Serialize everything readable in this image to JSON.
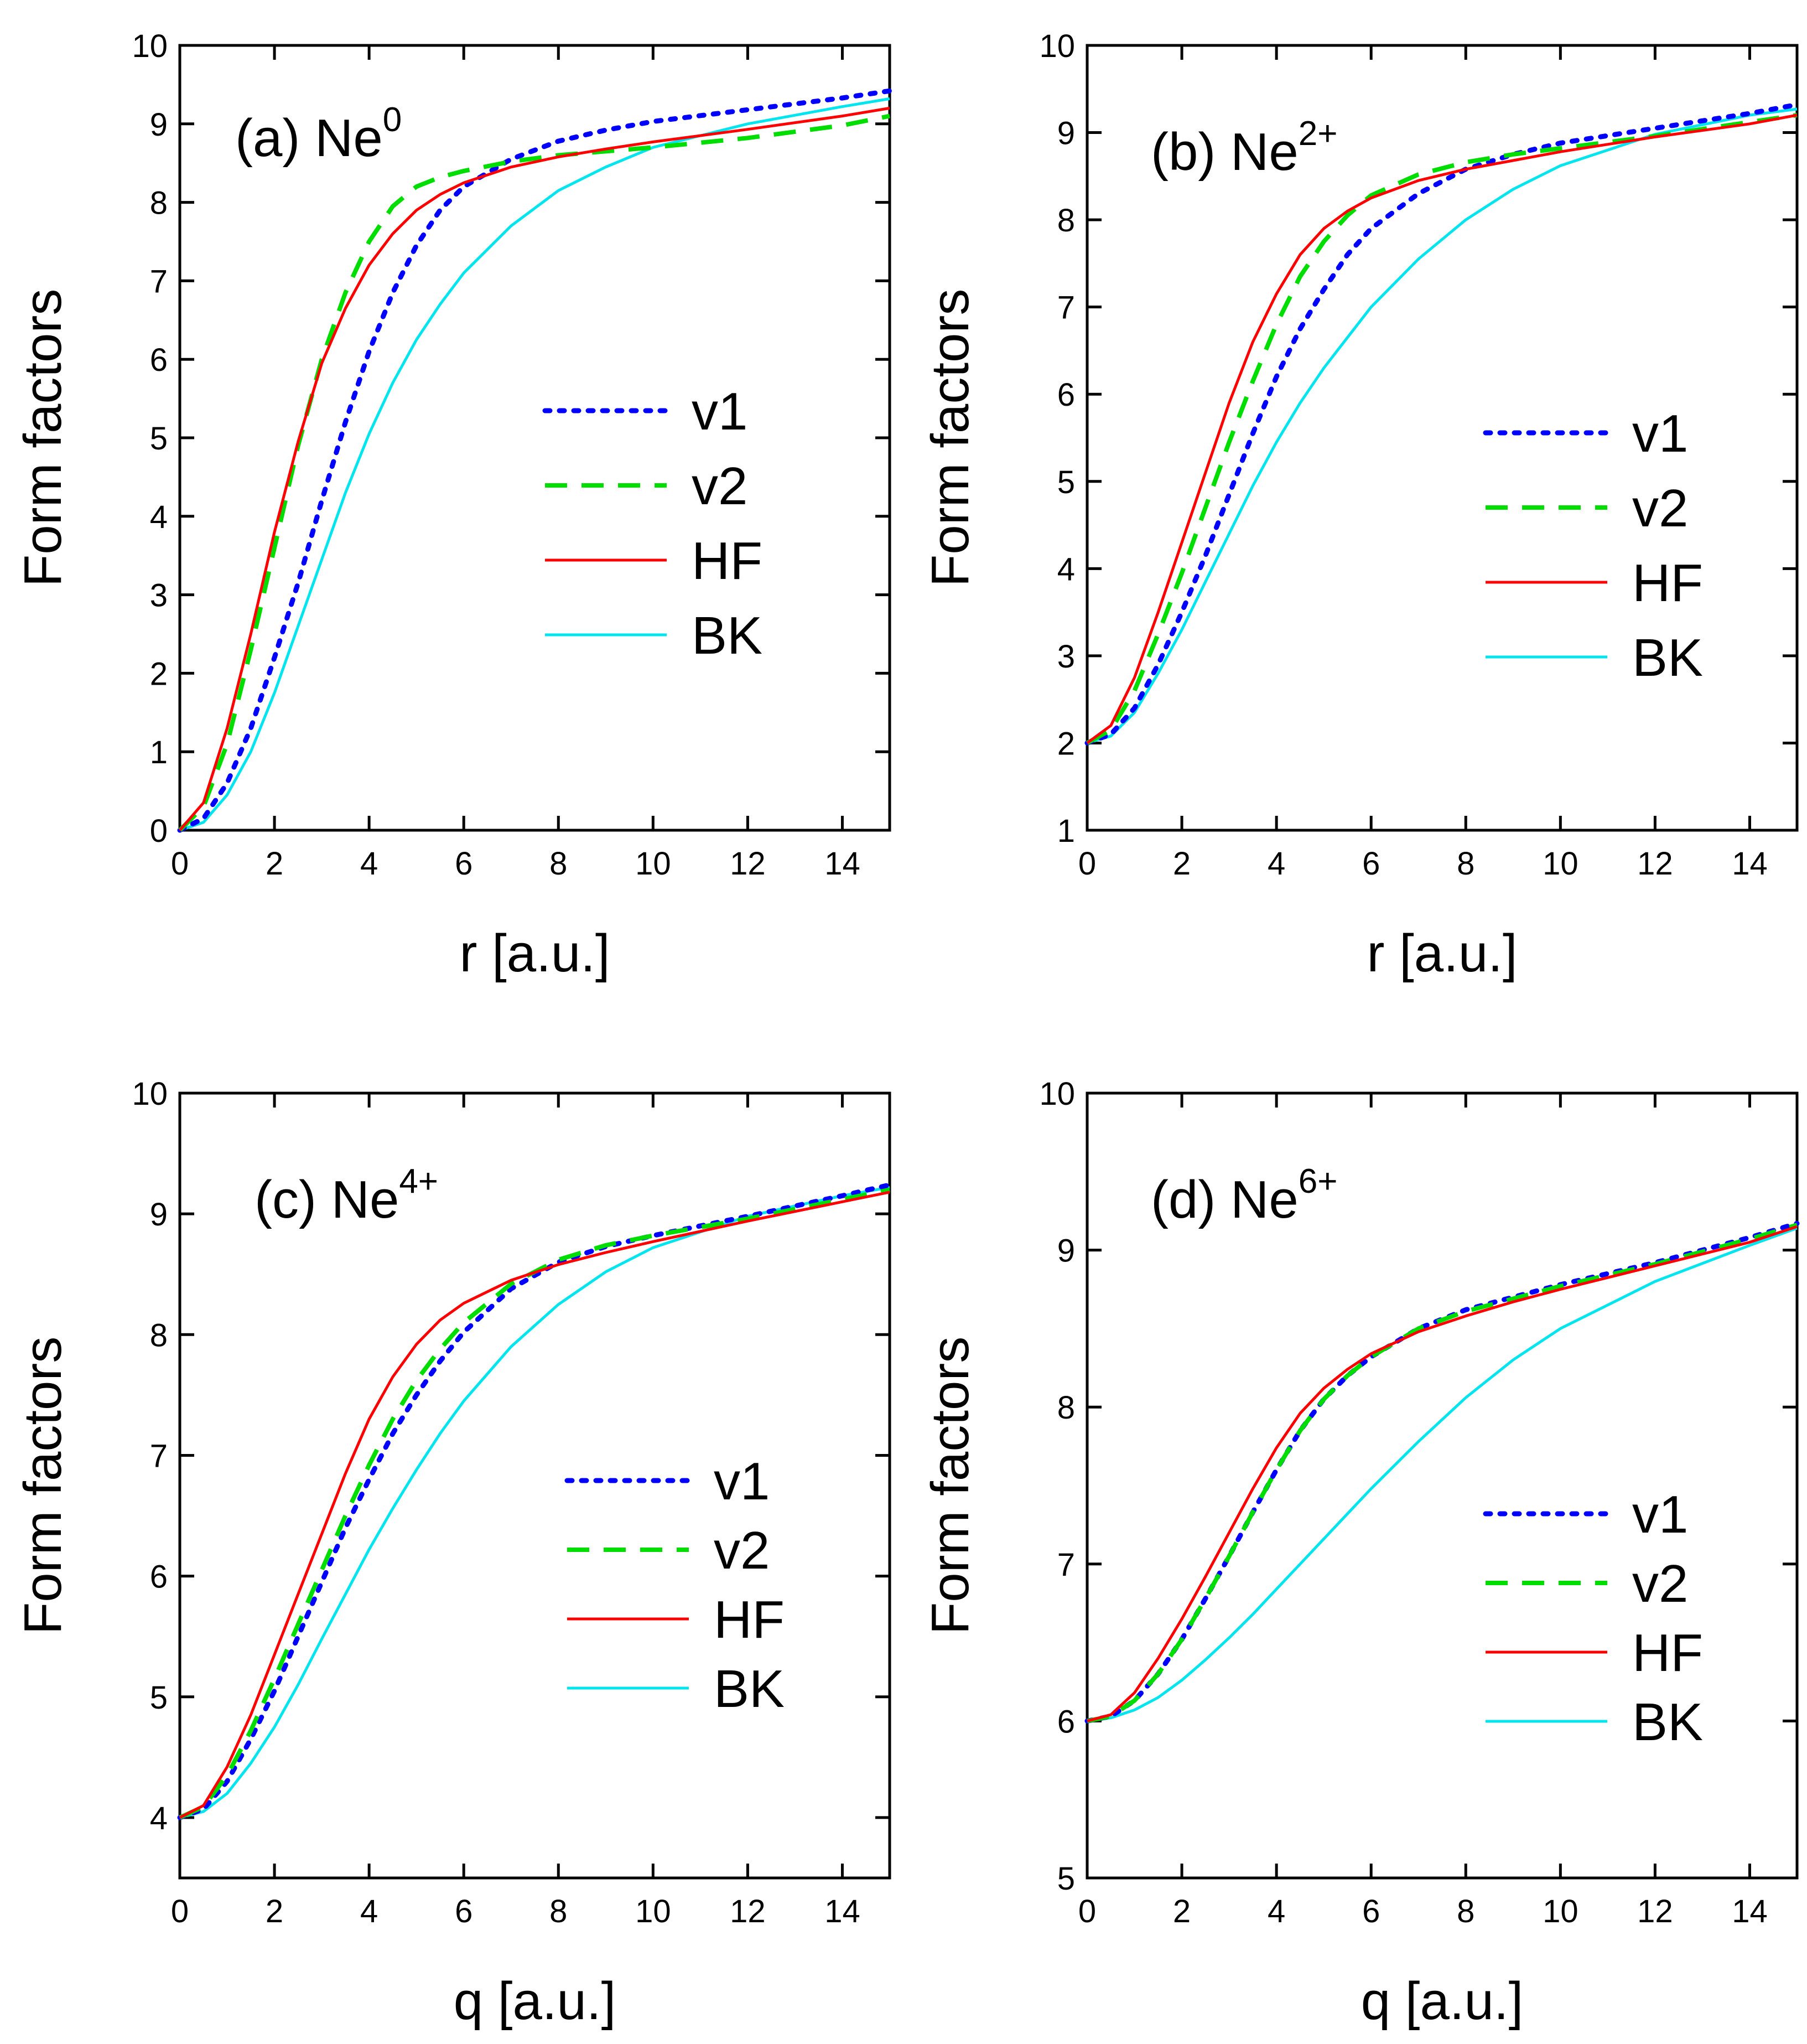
{
  "chart_data": [
    {
      "type": "line",
      "panel": "a",
      "title_prefix": "(a) Ne",
      "title_sup": "0",
      "xlabel": "r [a.u.]",
      "ylabel": "Form factors",
      "xlim": [
        0,
        15
      ],
      "ylim": [
        0,
        10
      ],
      "xticks": [
        "0",
        "2",
        "4",
        "6",
        "8",
        "10",
        "12",
        "14"
      ],
      "yticks": [
        "0",
        "1",
        "2",
        "3",
        "4",
        "5",
        "6",
        "7",
        "8",
        "9",
        "10"
      ],
      "legend_position": "center-right",
      "series": [
        {
          "name": "v1",
          "color": "#0000ff",
          "style": "dotted",
          "x": [
            0,
            0.5,
            1,
            1.5,
            2,
            2.5,
            3,
            3.5,
            4,
            4.5,
            5,
            5.5,
            6,
            7,
            8,
            9,
            10,
            12,
            14,
            15
          ],
          "y": [
            0,
            0.15,
            0.6,
            1.3,
            2.2,
            3.15,
            4.2,
            5.2,
            6.1,
            6.85,
            7.45,
            7.9,
            8.2,
            8.55,
            8.78,
            8.92,
            9.03,
            9.18,
            9.33,
            9.42
          ]
        },
        {
          "name": "v2",
          "color": "#00dd00",
          "style": "dashed",
          "x": [
            0,
            0.5,
            1,
            1.5,
            2,
            2.5,
            3,
            3.5,
            4,
            4.5,
            5,
            5.5,
            6,
            7,
            8,
            9,
            10,
            12,
            14,
            15
          ],
          "y": [
            0,
            0.3,
            1.1,
            2.3,
            3.6,
            4.9,
            6.0,
            6.85,
            7.5,
            7.95,
            8.2,
            8.32,
            8.4,
            8.52,
            8.6,
            8.65,
            8.7,
            8.82,
            8.98,
            9.1
          ]
        },
        {
          "name": "HF",
          "color": "#ff0000",
          "style": "solid",
          "x": [
            0,
            0.5,
            1,
            1.5,
            2,
            2.5,
            3,
            3.5,
            4,
            4.5,
            5,
            5.5,
            6,
            7,
            8,
            9,
            10,
            12,
            14,
            15
          ],
          "y": [
            0,
            0.35,
            1.3,
            2.5,
            3.8,
            4.95,
            5.95,
            6.65,
            7.2,
            7.6,
            7.9,
            8.1,
            8.25,
            8.45,
            8.58,
            8.68,
            8.77,
            8.93,
            9.1,
            9.2
          ]
        },
        {
          "name": "BK",
          "color": "#00e5ee",
          "style": "solid",
          "x": [
            0,
            0.5,
            1,
            1.5,
            2,
            2.5,
            3,
            3.5,
            4,
            4.5,
            5,
            5.5,
            6,
            7,
            8,
            9,
            10,
            12,
            14,
            15
          ],
          "y": [
            0,
            0.1,
            0.45,
            1.0,
            1.75,
            2.6,
            3.45,
            4.3,
            5.05,
            5.7,
            6.25,
            6.7,
            7.1,
            7.7,
            8.15,
            8.45,
            8.7,
            9.0,
            9.22,
            9.32
          ]
        }
      ]
    },
    {
      "type": "line",
      "panel": "b",
      "title_prefix": "(b)  Ne",
      "title_sup": "2+",
      "xlabel": "r [a.u.]",
      "ylabel": "Form factors",
      "xlim": [
        0,
        15
      ],
      "ylim": [
        1,
        10
      ],
      "xticks": [
        "0",
        "2",
        "4",
        "6",
        "8",
        "10",
        "12",
        "14"
      ],
      "yticks": [
        "1",
        "2",
        "3",
        "4",
        "5",
        "6",
        "7",
        "8",
        "9",
        "10"
      ],
      "legend_position": "center-right",
      "series": [
        {
          "name": "v1",
          "color": "#0000ff",
          "style": "dotted",
          "x": [
            0,
            0.5,
            1,
            1.5,
            2,
            2.5,
            3,
            3.5,
            4,
            4.5,
            5,
            5.5,
            6,
            7,
            8,
            9,
            10,
            12,
            14,
            15
          ],
          "y": [
            2,
            2.1,
            2.4,
            2.9,
            3.5,
            4.15,
            4.85,
            5.55,
            6.2,
            6.75,
            7.2,
            7.6,
            7.9,
            8.3,
            8.58,
            8.75,
            8.88,
            9.05,
            9.22,
            9.32
          ]
        },
        {
          "name": "v2",
          "color": "#00dd00",
          "style": "dashed",
          "x": [
            0,
            0.5,
            1,
            1.5,
            2,
            2.5,
            3,
            3.5,
            4,
            4.5,
            5,
            5.5,
            6,
            7,
            8,
            9,
            10,
            12,
            14,
            15
          ],
          "y": [
            2,
            2.15,
            2.6,
            3.25,
            3.95,
            4.7,
            5.45,
            6.15,
            6.8,
            7.35,
            7.75,
            8.05,
            8.28,
            8.52,
            8.66,
            8.75,
            8.82,
            8.96,
            9.12,
            9.2
          ]
        },
        {
          "name": "HF",
          "color": "#ff0000",
          "style": "solid",
          "x": [
            0,
            0.5,
            1,
            1.5,
            2,
            2.5,
            3,
            3.5,
            4,
            4.5,
            5,
            5.5,
            6,
            7,
            8,
            9,
            10,
            12,
            14,
            15
          ],
          "y": [
            2,
            2.2,
            2.75,
            3.5,
            4.3,
            5.1,
            5.9,
            6.6,
            7.15,
            7.6,
            7.9,
            8.1,
            8.25,
            8.45,
            8.58,
            8.68,
            8.78,
            8.95,
            9.1,
            9.2
          ]
        },
        {
          "name": "BK",
          "color": "#00e5ee",
          "style": "solid",
          "x": [
            0,
            0.5,
            1,
            1.5,
            2,
            2.5,
            3,
            3.5,
            4,
            4.5,
            5,
            5.5,
            6,
            7,
            8,
            9,
            10,
            12,
            14,
            15
          ],
          "y": [
            2,
            2.08,
            2.35,
            2.8,
            3.3,
            3.85,
            4.4,
            4.95,
            5.45,
            5.9,
            6.3,
            6.65,
            7.0,
            7.55,
            8.0,
            8.35,
            8.62,
            8.98,
            9.2,
            9.27
          ]
        }
      ]
    },
    {
      "type": "line",
      "panel": "c",
      "title_prefix": "(c)  Ne",
      "title_sup": "4+",
      "xlabel": "q [a.u.]",
      "ylabel": "Form factors",
      "xlim": [
        0,
        15
      ],
      "ylim": [
        3.5,
        10
      ],
      "xticks": [
        "0",
        "2",
        "4",
        "6",
        "8",
        "10",
        "12",
        "14"
      ],
      "yticks": [
        "4",
        "5",
        "6",
        "7",
        "8",
        "9",
        "10"
      ],
      "legend_position": "center-right",
      "series": [
        {
          "name": "v1",
          "color": "#0000ff",
          "style": "dotted",
          "x": [
            0,
            0.5,
            1,
            1.5,
            2,
            2.5,
            3,
            3.5,
            4,
            4.5,
            5,
            5.5,
            6,
            7,
            8,
            9,
            10,
            12,
            14,
            15
          ],
          "y": [
            4,
            4.07,
            4.3,
            4.65,
            5.05,
            5.5,
            5.95,
            6.4,
            6.8,
            7.18,
            7.5,
            7.78,
            8.02,
            8.38,
            8.6,
            8.73,
            8.82,
            8.98,
            9.15,
            9.24
          ]
        },
        {
          "name": "v2",
          "color": "#00dd00",
          "style": "dashed",
          "x": [
            0,
            0.5,
            1,
            1.5,
            2,
            2.5,
            3,
            3.5,
            4,
            4.5,
            5,
            5.5,
            6,
            7,
            8,
            9,
            10,
            12,
            14,
            15
          ],
          "y": [
            4,
            4.09,
            4.35,
            4.72,
            5.15,
            5.6,
            6.05,
            6.5,
            6.92,
            7.3,
            7.62,
            7.88,
            8.1,
            8.42,
            8.62,
            8.74,
            8.82,
            8.96,
            9.12,
            9.2
          ]
        },
        {
          "name": "HF",
          "color": "#ff0000",
          "style": "solid",
          "x": [
            0,
            0.5,
            1,
            1.5,
            2,
            2.5,
            3,
            3.5,
            4,
            4.5,
            5,
            5.5,
            6,
            7,
            8,
            9,
            10,
            12,
            14,
            15
          ],
          "y": [
            4,
            4.1,
            4.42,
            4.85,
            5.35,
            5.85,
            6.35,
            6.85,
            7.3,
            7.65,
            7.92,
            8.12,
            8.26,
            8.45,
            8.58,
            8.68,
            8.77,
            8.94,
            9.1,
            9.18
          ]
        },
        {
          "name": "BK",
          "color": "#00e5ee",
          "style": "solid",
          "x": [
            0,
            0.5,
            1,
            1.5,
            2,
            2.5,
            3,
            3.5,
            4,
            4.5,
            5,
            5.5,
            6,
            7,
            8,
            9,
            10,
            12,
            14,
            15
          ],
          "y": [
            4,
            4.05,
            4.2,
            4.45,
            4.75,
            5.1,
            5.48,
            5.85,
            6.22,
            6.56,
            6.88,
            7.18,
            7.45,
            7.9,
            8.25,
            8.52,
            8.72,
            8.98,
            9.15,
            9.22
          ]
        }
      ]
    },
    {
      "type": "line",
      "panel": "d",
      "title_prefix": "(d)  Ne",
      "title_sup": "6+",
      "xlabel": "q [a.u.]",
      "ylabel": "Form factors",
      "xlim": [
        0,
        15
      ],
      "ylim": [
        5,
        10
      ],
      "xticks": [
        "0",
        "2",
        "4",
        "6",
        "8",
        "10",
        "12",
        "14"
      ],
      "yticks": [
        "5",
        "6",
        "7",
        "8",
        "9",
        "10"
      ],
      "legend_position": "center-right",
      "series": [
        {
          "name": "v1",
          "color": "#0000ff",
          "style": "dotted",
          "x": [
            0,
            0.5,
            1,
            1.5,
            2,
            2.5,
            3,
            3.5,
            4,
            4.5,
            5,
            5.5,
            6,
            7,
            8,
            9,
            10,
            12,
            14,
            15
          ],
          "y": [
            6,
            6.03,
            6.13,
            6.3,
            6.52,
            6.78,
            7.05,
            7.33,
            7.6,
            7.85,
            8.05,
            8.2,
            8.32,
            8.5,
            8.62,
            8.7,
            8.78,
            8.92,
            9.08,
            9.17
          ]
        },
        {
          "name": "v2",
          "color": "#00dd00",
          "style": "dashed",
          "x": [
            0,
            0.5,
            1,
            1.5,
            2,
            2.5,
            3,
            3.5,
            4,
            4.5,
            5,
            5.5,
            6,
            7,
            8,
            9,
            10,
            12,
            14,
            15
          ],
          "y": [
            6,
            6.03,
            6.13,
            6.3,
            6.52,
            6.78,
            7.05,
            7.33,
            7.6,
            7.85,
            8.05,
            8.2,
            8.32,
            8.5,
            8.61,
            8.69,
            8.77,
            8.91,
            9.07,
            9.16
          ]
        },
        {
          "name": "HF",
          "color": "#ff0000",
          "style": "solid",
          "x": [
            0,
            0.5,
            1,
            1.5,
            2,
            2.5,
            3,
            3.5,
            4,
            4.5,
            5,
            5.5,
            6,
            7,
            8,
            9,
            10,
            12,
            14,
            15
          ],
          "y": [
            6,
            6.04,
            6.18,
            6.4,
            6.65,
            6.92,
            7.2,
            7.48,
            7.74,
            7.96,
            8.12,
            8.24,
            8.34,
            8.48,
            8.58,
            8.67,
            8.75,
            8.9,
            9.05,
            9.15
          ]
        },
        {
          "name": "BK",
          "color": "#00e5ee",
          "style": "solid",
          "x": [
            0,
            0.5,
            1,
            1.5,
            2,
            2.5,
            3,
            3.5,
            4,
            4.5,
            5,
            5.5,
            6,
            7,
            8,
            9,
            10,
            12,
            14,
            15
          ],
          "y": [
            6,
            6.02,
            6.07,
            6.15,
            6.26,
            6.39,
            6.53,
            6.68,
            6.84,
            7.0,
            7.16,
            7.32,
            7.48,
            7.78,
            8.06,
            8.3,
            8.5,
            8.8,
            9.03,
            9.14
          ]
        }
      ]
    }
  ]
}
